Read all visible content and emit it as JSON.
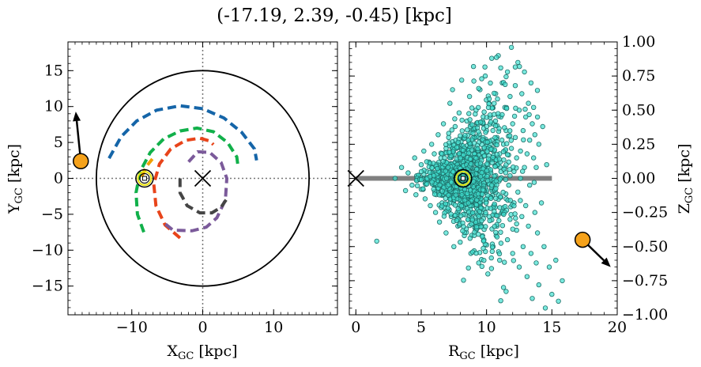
{
  "title": "(-17.19, 2.39, -0.45) [kpc]",
  "colors": {
    "arm_blue": "#1565a8",
    "arm_green": "#11b04a",
    "arm_red": "#e8441a",
    "arm_purple": "#7b5a9a",
    "arm_grey": "#454545",
    "arm_orange": "#f0a000",
    "marker_orange": "#f5a21b",
    "scatter_fill": "#40e0d0",
    "scatter_edge": "#1e6e68",
    "disk_line": "#808080"
  },
  "chart_data": [
    {
      "type": "line",
      "name": "xy-panel",
      "xlabel_main": "X",
      "xlabel_sub": "GC",
      "xlabel_unit": " [kpc]",
      "ylabel_main": "Y",
      "ylabel_sub": "GC",
      "ylabel_unit": " [kpc]",
      "xlim": [
        -19,
        19
      ],
      "ylim": [
        -19,
        19
      ],
      "xticks": [
        -10,
        0,
        10
      ],
      "xtick_labels": [
        "−10",
        "0",
        "10"
      ],
      "yticks": [
        -15,
        -10,
        -5,
        0,
        5,
        10,
        15
      ],
      "ytick_labels": [
        "−15",
        "−10",
        "−5",
        "0",
        "5",
        "10",
        "15"
      ],
      "circle": {
        "center": [
          0,
          0
        ],
        "radius": 15
      },
      "galactic_center": [
        0,
        0
      ],
      "sun": [
        -8.2,
        0.0
      ],
      "object": {
        "x": -17.19,
        "y": 2.39,
        "arrow_to": [
          -17.9,
          9.3
        ]
      },
      "arms": [
        {
          "name": "blue",
          "points": [
            [
              -13.2,
              2.8
            ],
            [
              -11.5,
              5.8
            ],
            [
              -9.3,
              8.0
            ],
            [
              -6.5,
              9.5
            ],
            [
              -3.2,
              10.1
            ],
            [
              0.0,
              9.7
            ],
            [
              3.0,
              8.4
            ],
            [
              5.5,
              6.4
            ],
            [
              7.3,
              4.1
            ],
            [
              7.6,
              2.5
            ]
          ]
        },
        {
          "name": "green",
          "points": [
            [
              -8.3,
              -7.5
            ],
            [
              -9.2,
              -5.0
            ],
            [
              -9.4,
              -2.0
            ],
            [
              -8.8,
              1.0
            ],
            [
              -7.4,
              3.6
            ],
            [
              -5.5,
              5.5
            ],
            [
              -3.2,
              6.6
            ],
            [
              -0.8,
              7.0
            ],
            [
              1.5,
              6.5
            ],
            [
              3.5,
              5.0
            ],
            [
              4.8,
              3.0
            ],
            [
              5.0,
              1.5
            ]
          ]
        },
        {
          "name": "orange",
          "points": [
            [
              -8.6,
              0.2
            ],
            [
              -8.0,
              1.6
            ],
            [
              -7.1,
              2.7
            ]
          ]
        },
        {
          "name": "red",
          "points": [
            [
              -3.2,
              -8.3
            ],
            [
              -5.3,
              -6.5
            ],
            [
              -6.6,
              -3.8
            ],
            [
              -6.9,
              -0.8
            ],
            [
              -6.1,
              2.0
            ],
            [
              -4.5,
              4.1
            ],
            [
              -2.4,
              5.3
            ],
            [
              -0.4,
              5.6
            ],
            [
              1.0,
              5.2
            ],
            [
              1.5,
              4.7
            ]
          ]
        },
        {
          "name": "purple",
          "points": [
            [
              -2.0,
              2.3
            ],
            [
              -0.7,
              3.7
            ],
            [
              1.0,
              3.6
            ],
            [
              2.6,
              2.2
            ],
            [
              3.4,
              0.0
            ],
            [
              3.2,
              -3.0
            ],
            [
              2.0,
              -5.5
            ],
            [
              0.5,
              -6.8
            ],
            [
              -1.5,
              -7.3
            ],
            [
              -4.2,
              -7.2
            ],
            [
              -5.7,
              -6.0
            ]
          ]
        },
        {
          "name": "grey",
          "points": [
            [
              -3.2,
              0.0
            ],
            [
              -3.2,
              -2.0
            ],
            [
              -2.2,
              -3.8
            ],
            [
              -0.4,
              -4.8
            ],
            [
              1.3,
              -4.8
            ],
            [
              2.6,
              -4.0
            ],
            [
              3.3,
              -3.0
            ]
          ]
        }
      ]
    },
    {
      "type": "scatter",
      "name": "rz-panel",
      "xlabel_main": "R",
      "xlabel_sub": "GC",
      "xlabel_unit": " [kpc]",
      "ylabel_main": "Z",
      "ylabel_sub": "GC",
      "ylabel_unit": " [kpc]",
      "xlim": [
        -0.5,
        20
      ],
      "ylim": [
        -1.0,
        1.0
      ],
      "xticks": [
        0,
        5,
        10,
        15,
        20
      ],
      "xtick_labels": [
        "0",
        "5",
        "10",
        "15",
        "20"
      ],
      "yticks": [
        -1.0,
        -0.75,
        -0.5,
        -0.25,
        0.0,
        0.25,
        0.5,
        0.75,
        1.0
      ],
      "ytick_labels": [
        "−1.00",
        "−0.75",
        "−0.50",
        "−0.25",
        "0.00",
        "0.25",
        "0.50",
        "0.75",
        "1.00"
      ],
      "disk_line": {
        "r": [
          0,
          15
        ],
        "z": 0
      },
      "galactic_center": [
        0,
        0
      ],
      "sun": [
        8.2,
        0.0
      ],
      "object": {
        "r": 17.35,
        "z": -0.45,
        "arrow_to": [
          19.5,
          -0.65
        ]
      },
      "scatter_points": [
        [
          1.6,
          -0.46
        ],
        [
          3.0,
          0.0
        ],
        [
          3.5,
          0.08
        ],
        [
          3.8,
          -0.09
        ],
        [
          4.0,
          0.04
        ],
        [
          4.3,
          -0.05
        ],
        [
          4.5,
          0.15
        ],
        [
          4.6,
          -0.12
        ],
        [
          4.8,
          0.02
        ],
        [
          5.0,
          0.1
        ],
        [
          5.0,
          -0.08
        ],
        [
          5.2,
          0.2
        ],
        [
          5.3,
          -0.15
        ],
        [
          5.4,
          0.05
        ],
        [
          5.5,
          -0.02
        ],
        [
          5.6,
          0.12
        ],
        [
          5.7,
          -0.2
        ],
        [
          5.8,
          0.25
        ],
        [
          5.9,
          0.0
        ],
        [
          6.0,
          -0.05
        ],
        [
          6.0,
          0.18
        ],
        [
          6.1,
          -0.25
        ],
        [
          6.2,
          0.08
        ],
        [
          6.3,
          0.32
        ],
        [
          6.3,
          -0.1
        ],
        [
          6.4,
          -0.32
        ],
        [
          6.5,
          0.15
        ],
        [
          6.5,
          0.02
        ],
        [
          6.6,
          -0.18
        ],
        [
          6.7,
          0.4
        ],
        [
          6.7,
          0.05
        ],
        [
          6.8,
          -0.08
        ],
        [
          6.9,
          0.22
        ],
        [
          6.9,
          -0.4
        ],
        [
          7.0,
          0.1
        ],
        [
          7.0,
          -0.02
        ],
        [
          7.1,
          0.3
        ],
        [
          7.2,
          -0.15
        ],
        [
          7.2,
          0.55
        ],
        [
          7.3,
          0.05
        ],
        [
          7.3,
          -0.28
        ],
        [
          7.4,
          0.18
        ],
        [
          7.4,
          0.65
        ],
        [
          7.5,
          -0.05
        ],
        [
          7.5,
          -0.5
        ],
        [
          7.6,
          0.12
        ],
        [
          7.6,
          0.38
        ],
        [
          7.7,
          -0.12
        ],
        [
          7.7,
          0.02
        ],
        [
          7.8,
          0.25
        ],
        [
          7.8,
          -0.35
        ],
        [
          7.9,
          0.08
        ],
        [
          7.9,
          0.48
        ],
        [
          8.0,
          -0.02
        ],
        [
          8.0,
          -0.22
        ],
        [
          8.1,
          0.15
        ],
        [
          8.1,
          0.72
        ],
        [
          8.2,
          -0.08
        ],
        [
          8.2,
          0.3
        ],
        [
          8.3,
          0.05
        ],
        [
          8.3,
          -0.42
        ],
        [
          8.4,
          0.2
        ],
        [
          8.4,
          -0.15
        ],
        [
          8.5,
          0.42
        ],
        [
          8.5,
          0.0
        ],
        [
          8.6,
          -0.3
        ],
        [
          8.6,
          0.12
        ],
        [
          8.7,
          0.6
        ],
        [
          8.7,
          -0.05
        ],
        [
          8.8,
          0.25
        ],
        [
          8.8,
          -0.55
        ],
        [
          8.9,
          0.08
        ],
        [
          8.9,
          0.35
        ],
        [
          9.0,
          -0.18
        ],
        [
          9.0,
          0.82
        ],
        [
          9.1,
          0.02
        ],
        [
          9.1,
          0.18
        ],
        [
          9.2,
          -0.38
        ],
        [
          9.2,
          0.5
        ],
        [
          9.3,
          0.1
        ],
        [
          9.3,
          -0.1
        ],
        [
          9.4,
          0.3
        ],
        [
          9.4,
          -0.62
        ],
        [
          9.5,
          0.05
        ],
        [
          9.5,
          0.65
        ],
        [
          9.6,
          -0.25
        ],
        [
          9.6,
          0.15
        ],
        [
          9.7,
          0.42
        ],
        [
          9.7,
          -0.05
        ],
        [
          9.8,
          0.22
        ],
        [
          9.8,
          -0.45
        ],
        [
          9.9,
          0.0
        ],
        [
          9.9,
          0.75
        ],
        [
          10.0,
          -0.15
        ],
        [
          10.0,
          0.35
        ],
        [
          10.1,
          0.1
        ],
        [
          10.1,
          -0.7
        ],
        [
          10.2,
          0.55
        ],
        [
          10.2,
          -0.28
        ],
        [
          10.3,
          0.05
        ],
        [
          10.3,
          0.25
        ],
        [
          10.4,
          -0.08
        ],
        [
          10.4,
          0.88
        ],
        [
          10.5,
          0.4
        ],
        [
          10.5,
          -0.5
        ],
        [
          10.6,
          0.15
        ],
        [
          10.6,
          -0.2
        ],
        [
          10.7,
          0.62
        ],
        [
          10.7,
          0.02
        ],
        [
          10.8,
          -0.35
        ],
        [
          10.8,
          0.3
        ],
        [
          10.9,
          0.9
        ],
        [
          10.9,
          -0.12
        ],
        [
          11.0,
          0.18
        ],
        [
          11.0,
          -0.6
        ],
        [
          11.1,
          0.45
        ],
        [
          11.1,
          0.05
        ],
        [
          11.2,
          -0.25
        ],
        [
          11.2,
          0.7
        ],
        [
          11.3,
          0.25
        ],
        [
          11.3,
          -0.8
        ],
        [
          11.4,
          0.08
        ],
        [
          11.4,
          0.52
        ],
        [
          11.5,
          -0.15
        ],
        [
          11.5,
          0.35
        ],
        [
          11.6,
          -0.45
        ],
        [
          11.6,
          0.78
        ],
        [
          11.7,
          0.12
        ],
        [
          11.7,
          -0.05
        ],
        [
          11.8,
          0.6
        ],
        [
          11.8,
          -0.3
        ],
        [
          11.9,
          0.22
        ],
        [
          11.9,
          0.96
        ],
        [
          12.0,
          -0.55
        ],
        [
          12.0,
          0.4
        ],
        [
          12.1,
          0.05
        ],
        [
          12.1,
          -0.18
        ],
        [
          12.2,
          0.68
        ],
        [
          12.2,
          0.3
        ],
        [
          12.3,
          -0.38
        ],
        [
          12.3,
          0.15
        ],
        [
          12.4,
          0.85
        ],
        [
          12.4,
          -0.1
        ],
        [
          12.5,
          0.5
        ],
        [
          12.5,
          -0.65
        ],
        [
          12.6,
          0.2
        ],
        [
          12.6,
          0.0
        ],
        [
          12.7,
          -0.28
        ],
        [
          12.7,
          0.62
        ],
        [
          12.8,
          0.35
        ],
        [
          12.8,
          -0.5
        ],
        [
          12.9,
          0.08
        ],
        [
          12.9,
          0.78
        ],
        [
          13.0,
          -0.2
        ],
        [
          13.0,
          0.45
        ],
        [
          13.1,
          -0.72
        ],
        [
          13.1,
          0.18
        ],
        [
          13.2,
          0.55
        ],
        [
          13.2,
          -0.35
        ],
        [
          13.3,
          0.28
        ],
        [
          13.3,
          -0.05
        ],
        [
          13.4,
          0.7
        ],
        [
          13.4,
          -0.55
        ],
        [
          13.5,
          0.4
        ],
        [
          13.5,
          -0.88
        ],
        [
          13.6,
          0.15
        ],
        [
          13.6,
          0.52
        ],
        [
          13.7,
          -0.25
        ],
        [
          13.7,
          0.32
        ],
        [
          13.8,
          -0.62
        ],
        [
          13.8,
          0.08
        ],
        [
          13.9,
          0.45
        ],
        [
          13.9,
          -0.4
        ],
        [
          14.0,
          0.25
        ],
        [
          14.0,
          -0.78
        ],
        [
          14.2,
          -0.18
        ],
        [
          14.3,
          0.38
        ],
        [
          14.4,
          -0.5
        ],
        [
          14.5,
          -0.95
        ],
        [
          14.6,
          0.1
        ],
        [
          14.8,
          -0.65
        ],
        [
          15.0,
          -0.85
        ],
        [
          15.3,
          -0.6
        ],
        [
          15.5,
          -0.9
        ],
        [
          15.8,
          -0.75
        ]
      ]
    }
  ]
}
